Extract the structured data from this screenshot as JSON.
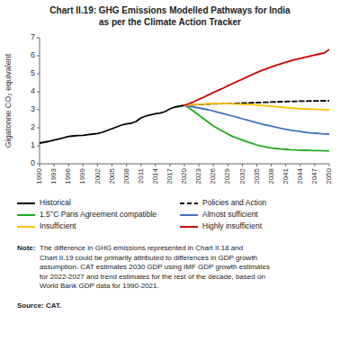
{
  "chart_data": {
    "type": "line",
    "title": "Chart II.19: GHG Emissions Modelled Pathways for India\nas per the Climate Action Tracker",
    "y_label": "Gigatonne CO₂ equivalent",
    "xlim": [
      1990,
      2050
    ],
    "xticks": [
      1990,
      1993,
      1996,
      1999,
      2002,
      2005,
      2008,
      2011,
      2014,
      2017,
      2020,
      2023,
      2026,
      2029,
      2032,
      2035,
      2038,
      2041,
      2044,
      2047,
      2050
    ],
    "ylim": [
      0,
      7
    ],
    "yticks": [
      0,
      1,
      2,
      3,
      4,
      5,
      6,
      7
    ],
    "grid": false,
    "legend": "bottom",
    "series": [
      {
        "name": "Historical",
        "color": "#000000",
        "line_style": "solid",
        "x": [
          1990,
          1991,
          1992,
          1993,
          1994,
          1995,
          1996,
          1997,
          1998,
          1999,
          2000,
          2001,
          2002,
          2003,
          2004,
          2005,
          2006,
          2007,
          2008,
          2009,
          2010,
          2011,
          2012,
          2013,
          2014,
          2015,
          2016,
          2017,
          2018,
          2019,
          2020
        ],
        "values": [
          1.15,
          1.2,
          1.25,
          1.32,
          1.38,
          1.45,
          1.52,
          1.55,
          1.57,
          1.58,
          1.62,
          1.65,
          1.68,
          1.75,
          1.85,
          1.95,
          2.05,
          2.15,
          2.22,
          2.25,
          2.35,
          2.55,
          2.65,
          2.72,
          2.78,
          2.82,
          2.9,
          3.05,
          3.15,
          3.2,
          3.25
        ]
      },
      {
        "name": "Policies and Action",
        "color": "#000000",
        "line_style": "dashed",
        "x": [
          2020,
          2021,
          2022,
          2023,
          2024,
          2025,
          2026,
          2027,
          2028,
          2029,
          2030,
          2031,
          2032,
          2033,
          2034,
          2035,
          2036,
          2037,
          2038,
          2039,
          2040,
          2041,
          2042,
          2043,
          2044,
          2045,
          2046,
          2047,
          2048,
          2049,
          2050
        ],
        "values": [
          3.25,
          3.27,
          3.28,
          3.3,
          3.31,
          3.32,
          3.33,
          3.33,
          3.34,
          3.34,
          3.35,
          3.36,
          3.37,
          3.38,
          3.39,
          3.4,
          3.41,
          3.42,
          3.43,
          3.44,
          3.45,
          3.46,
          3.47,
          3.47,
          3.48,
          3.48,
          3.49,
          3.49,
          3.5,
          3.5,
          3.5
        ]
      },
      {
        "name": "1.5°C Paris Agreement compatible",
        "color": "#22aa22",
        "line_style": "solid",
        "x": [
          2020,
          2021,
          2022,
          2023,
          2024,
          2025,
          2026,
          2027,
          2028,
          2029,
          2030,
          2031,
          2032,
          2033,
          2034,
          2035,
          2036,
          2037,
          2038,
          2039,
          2040,
          2041,
          2042,
          2043,
          2044,
          2045,
          2046,
          2047,
          2048,
          2049,
          2050
        ],
        "values": [
          3.25,
          3.1,
          2.9,
          2.7,
          2.5,
          2.3,
          2.1,
          1.95,
          1.8,
          1.65,
          1.52,
          1.42,
          1.32,
          1.22,
          1.13,
          1.05,
          0.98,
          0.93,
          0.88,
          0.85,
          0.82,
          0.8,
          0.78,
          0.77,
          0.76,
          0.75,
          0.74,
          0.73,
          0.73,
          0.72,
          0.72
        ]
      },
      {
        "name": "Almost sufficient",
        "color": "#4472c4",
        "line_style": "solid",
        "x": [
          2020,
          2021,
          2022,
          2023,
          2024,
          2025,
          2026,
          2027,
          2028,
          2029,
          2030,
          2031,
          2032,
          2033,
          2034,
          2035,
          2036,
          2037,
          2038,
          2039,
          2040,
          2041,
          2042,
          2043,
          2044,
          2045,
          2046,
          2047,
          2048,
          2049,
          2050
        ],
        "values": [
          3.25,
          3.2,
          3.15,
          3.1,
          3.05,
          3.0,
          2.93,
          2.86,
          2.79,
          2.72,
          2.65,
          2.58,
          2.5,
          2.43,
          2.36,
          2.28,
          2.21,
          2.15,
          2.09,
          2.03,
          1.97,
          1.92,
          1.87,
          1.83,
          1.79,
          1.75,
          1.72,
          1.7,
          1.68,
          1.66,
          1.65
        ]
      },
      {
        "name": "Insufficient",
        "color": "#FFC000",
        "line_style": "solid",
        "x": [
          2020,
          2021,
          2022,
          2023,
          2024,
          2025,
          2026,
          2027,
          2028,
          2029,
          2030,
          2031,
          2032,
          2033,
          2034,
          2035,
          2036,
          2037,
          2038,
          2039,
          2040,
          2041,
          2042,
          2043,
          2044,
          2045,
          2046,
          2047,
          2048,
          2049,
          2050
        ],
        "values": [
          3.25,
          3.27,
          3.29,
          3.31,
          3.32,
          3.33,
          3.34,
          3.34,
          3.34,
          3.34,
          3.33,
          3.32,
          3.31,
          3.3,
          3.28,
          3.26,
          3.24,
          3.22,
          3.2,
          3.17,
          3.15,
          3.12,
          3.1,
          3.08,
          3.06,
          3.05,
          3.04,
          3.03,
          3.02,
          3.01,
          3.0
        ]
      },
      {
        "name": "Highly insufficient",
        "color": "#cc0000",
        "line_style": "solid",
        "x": [
          2020,
          2021,
          2022,
          2023,
          2024,
          2025,
          2026,
          2027,
          2028,
          2029,
          2030,
          2031,
          2032,
          2033,
          2034,
          2035,
          2036,
          2037,
          2038,
          2039,
          2040,
          2041,
          2042,
          2043,
          2044,
          2045,
          2046,
          2047,
          2048,
          2049,
          2050
        ],
        "values": [
          3.25,
          3.35,
          3.45,
          3.58,
          3.7,
          3.83,
          3.96,
          4.08,
          4.2,
          4.33,
          4.46,
          4.58,
          4.7,
          4.83,
          4.95,
          5.07,
          5.18,
          5.28,
          5.38,
          5.47,
          5.56,
          5.64,
          5.72,
          5.79,
          5.86,
          5.92,
          5.98,
          6.04,
          6.1,
          6.16,
          6.35
        ]
      }
    ],
    "annotations": [
      "Note:",
      " The difference in GHG emissions represented in Chart II.18 and\nChart II.19 could be primarily attributed to differences in GDP growth\nassumption. CAT estimates 2030 GDP using IMF GDP growth estimates\nfor 2022-2027 and trend estimates for the rest of the decade, based on\nWorld Bank GDP data for 1990-2021.",
      "Source: CAT."
    ]
  }
}
